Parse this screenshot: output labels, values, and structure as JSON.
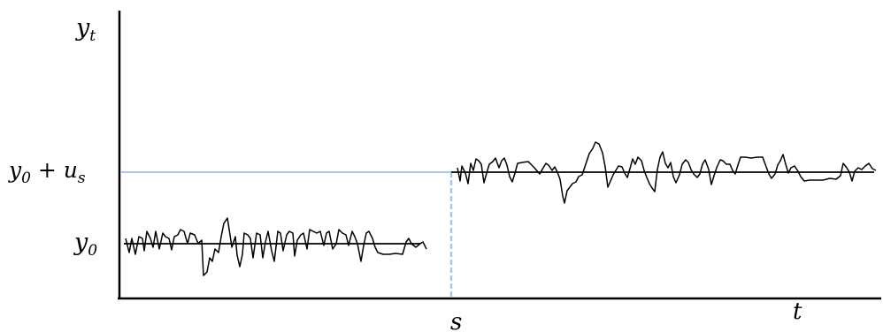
{
  "labels": {
    "y_axis": {
      "base": "y",
      "sub": "t"
    },
    "level_shifted": {
      "y": "y",
      "y_sub": "0",
      "plus": " + ",
      "u": "u",
      "u_sub": "s"
    },
    "level_base": {
      "base": "y",
      "sub": "0"
    },
    "break_point": "s",
    "time_axis": "t"
  },
  "colors": {
    "axis": "#000000",
    "series": "#000000",
    "guide": "#a9c9e6"
  }
}
